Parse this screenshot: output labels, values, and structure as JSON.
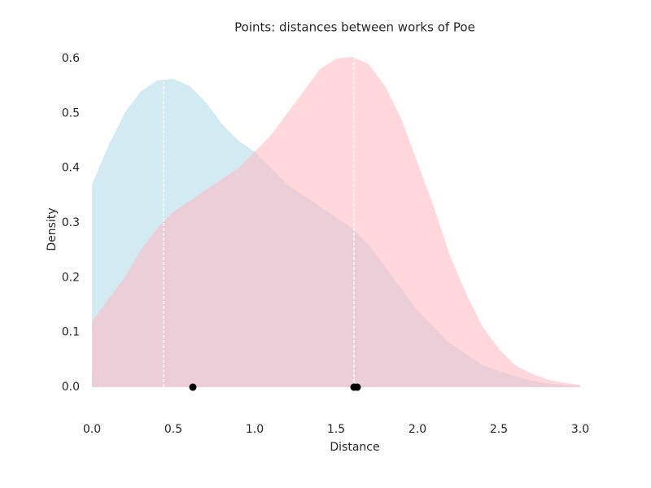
{
  "chart_data": {
    "type": "area",
    "title": "Points: distances between works of Poe",
    "x_label": "Distance",
    "y_label": "Density",
    "x": [
      0,
      0.1,
      0.2,
      0.3,
      0.4,
      0.5,
      0.6,
      0.7,
      0.8,
      0.9,
      1.0,
      1.1,
      1.2,
      1.3,
      1.4,
      1.5,
      1.6,
      1.7,
      1.8,
      1.9,
      2.0,
      2.1,
      2.2,
      2.3,
      2.4,
      2.5,
      2.6,
      2.7,
      2.8,
      2.9,
      3.0
    ],
    "series": [
      {
        "color": "#add8e6",
        "values": [
          0.37,
          0.44,
          0.5,
          0.54,
          0.56,
          0.563,
          0.55,
          0.52,
          0.48,
          0.45,
          0.43,
          0.4,
          0.37,
          0.35,
          0.33,
          0.31,
          0.29,
          0.26,
          0.22,
          0.18,
          0.14,
          0.11,
          0.08,
          0.06,
          0.04,
          0.03,
          0.02,
          0.012,
          0.007,
          0.004,
          0.002
        ]
      },
      {
        "color": "#ffb6c1",
        "values": [
          0.12,
          0.16,
          0.2,
          0.25,
          0.29,
          0.32,
          0.34,
          0.36,
          0.38,
          0.4,
          0.43,
          0.46,
          0.5,
          0.54,
          0.58,
          0.6,
          0.603,
          0.59,
          0.55,
          0.49,
          0.41,
          0.33,
          0.24,
          0.17,
          0.11,
          0.07,
          0.04,
          0.025,
          0.014,
          0.008,
          0.004
        ]
      }
    ],
    "fill_opacity": 0.55,
    "vlines": {
      "x": [
        0.44,
        1.61
      ],
      "ymax": [
        0.56,
        0.6
      ],
      "color": "#ffffff"
    },
    "points": {
      "x": [
        0.62,
        1.61,
        1.63
      ],
      "y": [
        0,
        0,
        0
      ],
      "color": "#000000"
    },
    "xlim": [
      0,
      3.03
    ],
    "ylim": [
      -0.05,
      0.62
    ],
    "xticks": [
      {
        "value": 0,
        "label": "0.0"
      },
      0.5,
      {
        "value": 1,
        "label": "1.0"
      },
      1.5,
      {
        "value": 2,
        "label": "2.0"
      },
      2.5,
      {
        "value": 3,
        "label": "3.0"
      }
    ],
    "yticks": [
      {
        "value": 0,
        "label": "0.0"
      },
      0.1,
      0.2,
      0.3,
      0.4,
      0.5,
      0.6
    ],
    "grid": false
  }
}
